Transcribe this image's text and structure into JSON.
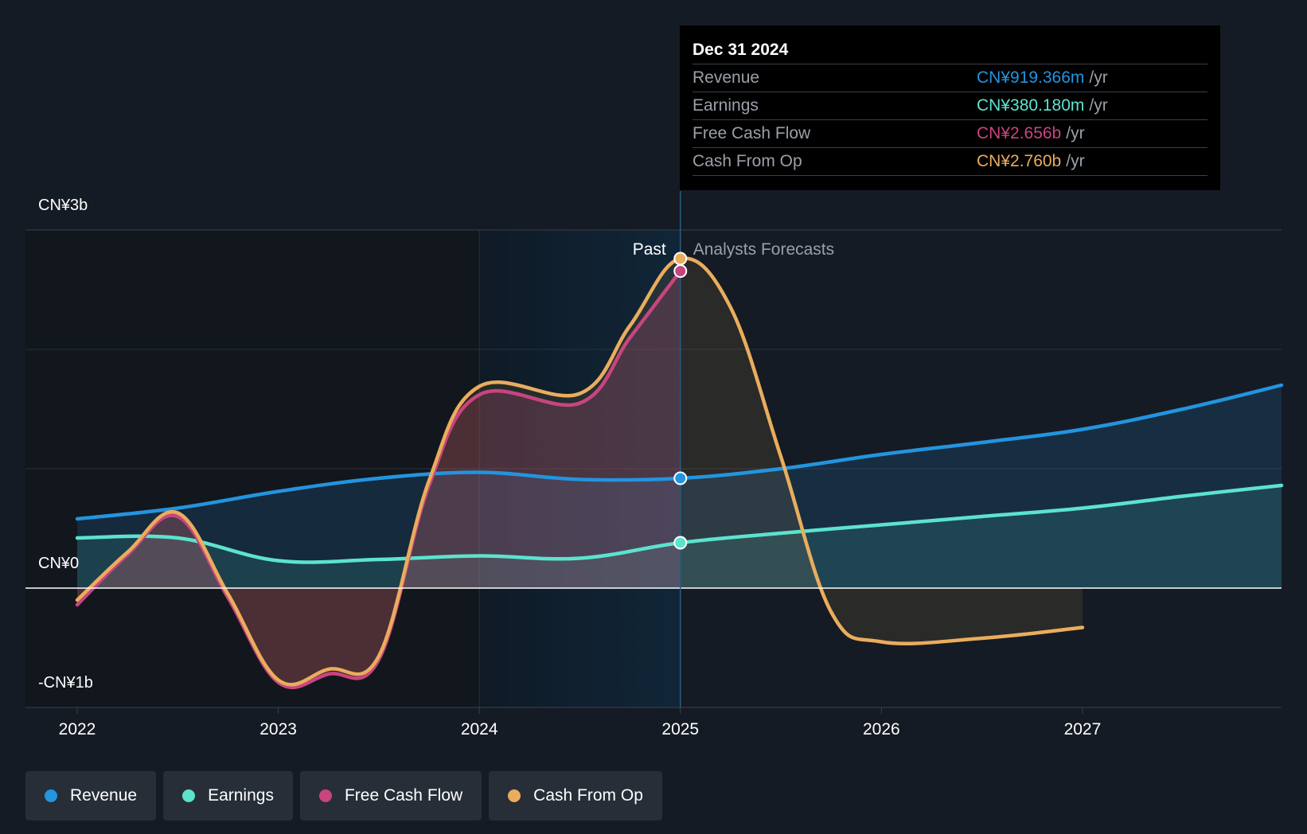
{
  "chart_data": {
    "type": "line",
    "x_ticks": [
      "2022",
      "2023",
      "2024",
      "2025",
      "2026",
      "2027"
    ],
    "y_ticks": [
      {
        "label": "CN¥3b",
        "value": 3
      },
      {
        "label": "CN¥0",
        "value": 0
      },
      {
        "label": "-CN¥1b",
        "value": -1
      }
    ],
    "ylim": [
      -1,
      3
    ],
    "xlim": [
      2021.75,
      2027.99
    ],
    "past_label": "Past",
    "forecast_label": "Analysts Forecasts",
    "divider_x": 2025.0,
    "highlight_range": [
      2024.0,
      2025.0
    ],
    "series": [
      {
        "name": "Revenue",
        "color": "#2394df",
        "fill": true,
        "x": [
          2022.0,
          2022.5,
          2023.0,
          2023.5,
          2024.0,
          2024.5,
          2025.0,
          2025.5,
          2026.0,
          2026.5,
          2027.0,
          2027.5,
          2027.99
        ],
        "y": [
          0.58,
          0.67,
          0.81,
          0.92,
          0.97,
          0.91,
          0.92,
          1.0,
          1.12,
          1.22,
          1.33,
          1.5,
          1.7
        ]
      },
      {
        "name": "Earnings",
        "color": "#5ce3ce",
        "fill": true,
        "x": [
          2022.0,
          2022.5,
          2023.0,
          2023.5,
          2024.0,
          2024.5,
          2025.0,
          2025.5,
          2026.0,
          2026.5,
          2027.0,
          2027.5,
          2027.99
        ],
        "y": [
          0.42,
          0.42,
          0.23,
          0.24,
          0.27,
          0.25,
          0.38,
          0.46,
          0.53,
          0.6,
          0.67,
          0.77,
          0.86
        ]
      },
      {
        "name": "Free Cash Flow",
        "color": "#c8457e",
        "fill": true,
        "x": [
          2022.0,
          2022.25,
          2022.5,
          2022.75,
          2023.0,
          2023.25,
          2023.5,
          2023.75,
          2024.0,
          2024.5,
          2024.75,
          2025.0
        ],
        "y": [
          -0.14,
          0.28,
          0.6,
          -0.08,
          -0.79,
          -0.72,
          -0.6,
          0.86,
          1.62,
          1.55,
          2.1,
          2.656
        ]
      },
      {
        "name": "Cash From Op",
        "color": "#e9ad5d",
        "fill": true,
        "x": [
          2022.0,
          2022.25,
          2022.5,
          2022.75,
          2023.0,
          2023.25,
          2023.5,
          2023.75,
          2024.0,
          2024.5,
          2024.75,
          2025.0,
          2025.25,
          2025.5,
          2025.75,
          2026.0,
          2026.5,
          2027.0
        ],
        "y": [
          -0.1,
          0.3,
          0.63,
          -0.05,
          -0.77,
          -0.68,
          -0.57,
          0.9,
          1.69,
          1.63,
          2.2,
          2.76,
          2.35,
          1.1,
          -0.2,
          -0.45,
          -0.42,
          -0.33
        ]
      }
    ]
  },
  "tooltip": {
    "date": "Dec 31 2024",
    "unit": "/yr",
    "rows": [
      {
        "label": "Revenue",
        "value": "CN¥919.366m",
        "color": "#2394df"
      },
      {
        "label": "Earnings",
        "value": "CN¥380.180m",
        "color": "#5ce3ce"
      },
      {
        "label": "Free Cash Flow",
        "value": "CN¥2.656b",
        "color": "#c8457e"
      },
      {
        "label": "Cash From Op",
        "value": "CN¥2.760b",
        "color": "#e9ad5d"
      }
    ]
  },
  "legend": [
    {
      "label": "Revenue",
      "color": "#2394df"
    },
    {
      "label": "Earnings",
      "color": "#5ce3ce"
    },
    {
      "label": "Free Cash Flow",
      "color": "#c8457e"
    },
    {
      "label": "Cash From Op",
      "color": "#e9ad5d"
    }
  ]
}
